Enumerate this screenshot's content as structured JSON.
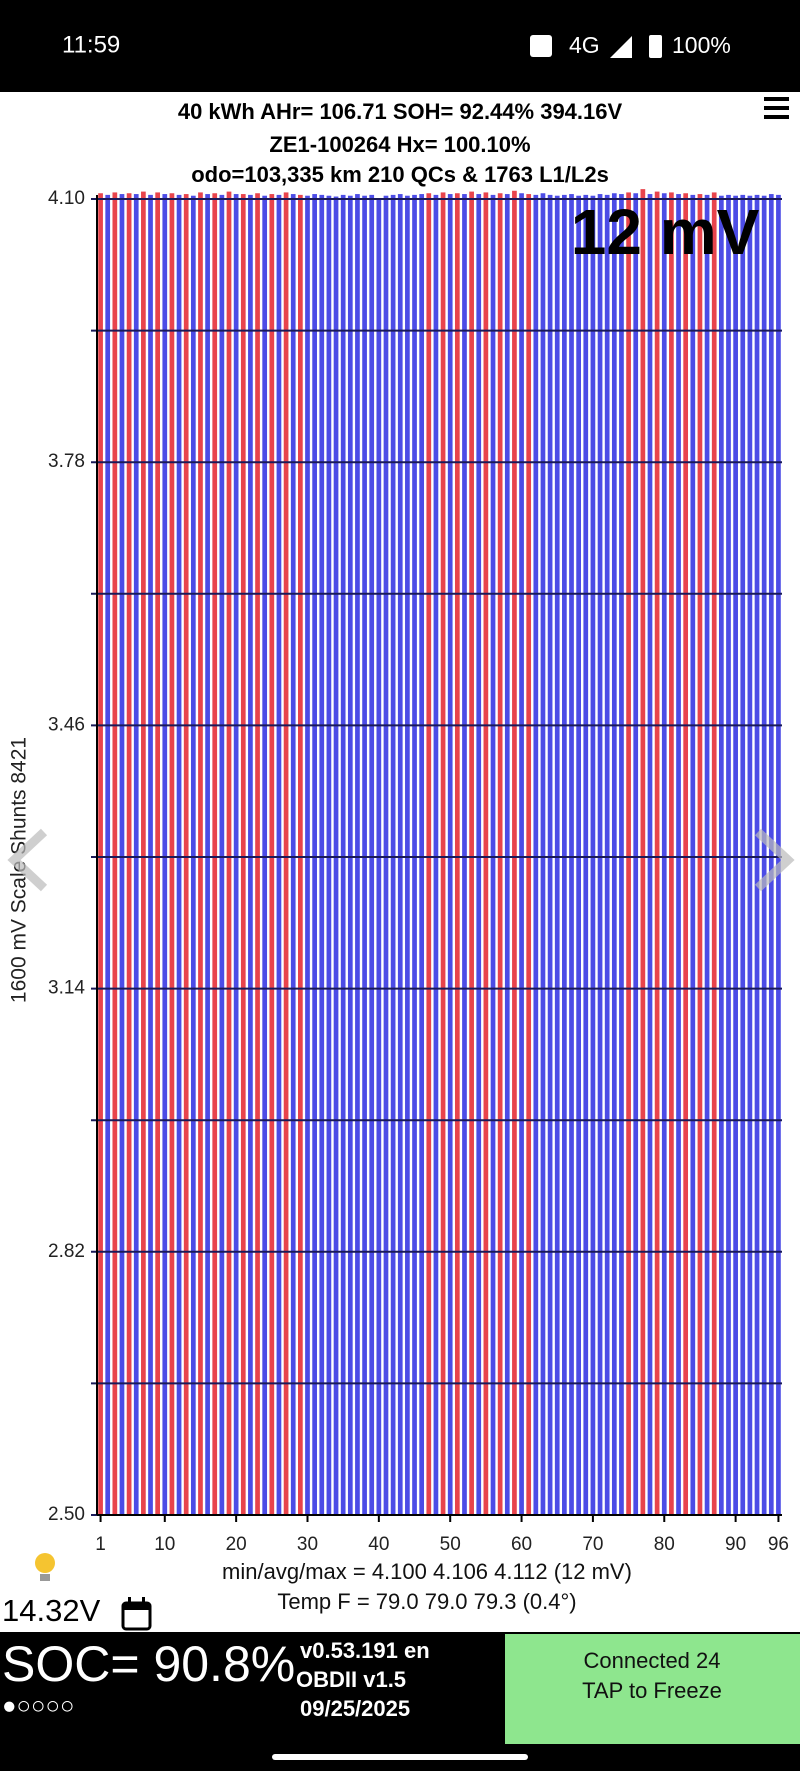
{
  "status_bar": {
    "time": "11:59",
    "network": "4G",
    "battery": "100%"
  },
  "header": {
    "line1": "40 kWh  AHr= 106.71  SOH= 92.44%   394.16V",
    "line2": "ZE1-100264   Hx= 100.10%",
    "line3": "odo=103,335 km 210 QCs & 1763 L1/L2s"
  },
  "chart_data": {
    "type": "bar",
    "annotation": "12 mV",
    "y_label": "1600 mV Scale  Shunts 8421",
    "x": [
      1,
      2,
      3,
      4,
      5,
      6,
      7,
      8,
      9,
      10,
      11,
      12,
      13,
      14,
      15,
      16,
      17,
      18,
      19,
      20,
      21,
      22,
      23,
      24,
      25,
      26,
      27,
      28,
      29,
      30,
      31,
      32,
      33,
      34,
      35,
      36,
      37,
      38,
      39,
      40,
      41,
      42,
      43,
      44,
      45,
      46,
      47,
      48,
      49,
      50,
      51,
      52,
      53,
      54,
      55,
      56,
      57,
      58,
      59,
      60,
      61,
      62,
      63,
      64,
      65,
      66,
      67,
      68,
      69,
      70,
      71,
      72,
      73,
      74,
      75,
      76,
      77,
      78,
      79,
      80,
      81,
      82,
      83,
      84,
      85,
      86,
      87,
      88,
      89,
      90,
      91,
      92,
      93,
      94,
      95,
      96
    ],
    "values": [
      4.107,
      4.105,
      4.108,
      4.106,
      4.107,
      4.106,
      4.109,
      4.105,
      4.108,
      4.106,
      4.107,
      4.105,
      4.106,
      4.104,
      4.108,
      4.106,
      4.107,
      4.105,
      4.109,
      4.106,
      4.106,
      4.105,
      4.107,
      4.104,
      4.106,
      4.105,
      4.108,
      4.106,
      4.105,
      4.104,
      4.106,
      4.105,
      4.104,
      4.103,
      4.105,
      4.104,
      4.106,
      4.104,
      4.105,
      4.1,
      4.104,
      4.105,
      4.106,
      4.104,
      4.105,
      4.106,
      4.107,
      4.105,
      4.108,
      4.106,
      4.107,
      4.106,
      4.109,
      4.106,
      4.108,
      4.105,
      4.107,
      4.106,
      4.11,
      4.107,
      4.106,
      4.105,
      4.107,
      4.105,
      4.104,
      4.105,
      4.106,
      4.104,
      4.105,
      4.104,
      4.106,
      4.105,
      4.107,
      4.106,
      4.108,
      4.107,
      4.112,
      4.106,
      4.109,
      4.107,
      4.108,
      4.106,
      4.107,
      4.105,
      4.106,
      4.105,
      4.108,
      4.104,
      4.105,
      4.104,
      4.105,
      4.104,
      4.105,
      4.104,
      4.106,
      4.105
    ],
    "colors": [
      "#e8444c",
      "#4c4ce6",
      "#e8444c",
      "#4c4ce6",
      "#e8444c",
      "#4c4ce6",
      "#e8444c",
      "#4c4ce6",
      "#e8444c",
      "#4c4ce6",
      "#e8444c",
      "#4c4ce6",
      "#e8444c",
      "#4c4ce6",
      "#e8444c",
      "#4c4ce6",
      "#e8444c",
      "#4c4ce6",
      "#e8444c",
      "#4c4ce6",
      "#e8444c",
      "#4c4ce6",
      "#e8444c",
      "#4c4ce6",
      "#e8444c",
      "#4c4ce6",
      "#e8444c",
      "#4c4ce6",
      "#e8444c",
      "#4c4ce6",
      "#4c4ce6",
      "#4c4ce6",
      "#4c4ce6",
      "#4c4ce6",
      "#4c4ce6",
      "#4c4ce6",
      "#4c4ce6",
      "#4c4ce6",
      "#4c4ce6",
      "#4c4ce6",
      "#4c4ce6",
      "#4c4ce6",
      "#4c4ce6",
      "#4c4ce6",
      "#4c4ce6",
      "#4c4ce6",
      "#e8444c",
      "#4c4ce6",
      "#e8444c",
      "#4c4ce6",
      "#e8444c",
      "#4c4ce6",
      "#e8444c",
      "#4c4ce6",
      "#e8444c",
      "#4c4ce6",
      "#e8444c",
      "#4c4ce6",
      "#e8444c",
      "#4c4ce6",
      "#e8444c",
      "#4c4ce6",
      "#4c4ce6",
      "#4c4ce6",
      "#4c4ce6",
      "#4c4ce6",
      "#4c4ce6",
      "#4c4ce6",
      "#4c4ce6",
      "#4c4ce6",
      "#4c4ce6",
      "#4c4ce6",
      "#4c4ce6",
      "#4c4ce6",
      "#e8444c",
      "#4c4ce6",
      "#e8444c",
      "#4c4ce6",
      "#e8444c",
      "#4c4ce6",
      "#e8444c",
      "#4c4ce6",
      "#e8444c",
      "#4c4ce6",
      "#e8444c",
      "#4c4ce6",
      "#e8444c",
      "#4c4ce6",
      "#4c4ce6",
      "#4c4ce6",
      "#4c4ce6",
      "#4c4ce6",
      "#4c4ce6",
      "#4c4ce6",
      "#4c4ce6",
      "#4c4ce6"
    ],
    "xlim": [
      0.5,
      96.5
    ],
    "xticks": [
      1,
      10,
      20,
      30,
      40,
      50,
      60,
      70,
      80,
      90,
      96
    ],
    "ylim": [
      2.5,
      4.1
    ],
    "yticks": [
      {
        "value": 2.5,
        "label": "2.50"
      },
      {
        "value": 2.82,
        "label": "2.82"
      },
      {
        "value": 3.14,
        "label": "3.14"
      },
      {
        "value": 3.46,
        "label": "3.46"
      },
      {
        "value": 3.78,
        "label": "3.78"
      },
      {
        "value": 4.1,
        "label": "4.10"
      }
    ],
    "minor_yticks": [
      2.66,
      2.98,
      3.3,
      3.62,
      3.94
    ],
    "grid": true,
    "grid_color": "#1a1a5a"
  },
  "footer": {
    "summary": "min/avg/max = 4.100 4.106 4.112  (12 mV)",
    "temperature": "Temp F = 79.0  79.0  79.3  (0.4°)",
    "aux_voltage": "14.32V",
    "soc": "SOC= 90.8%",
    "dots": "●○○○○",
    "version": "v0.53.191 en",
    "obd": "OBDII  v1.5",
    "date": "09/25/2025",
    "status_line1": "Connected 24",
    "status_line2": "TAP to Freeze"
  }
}
